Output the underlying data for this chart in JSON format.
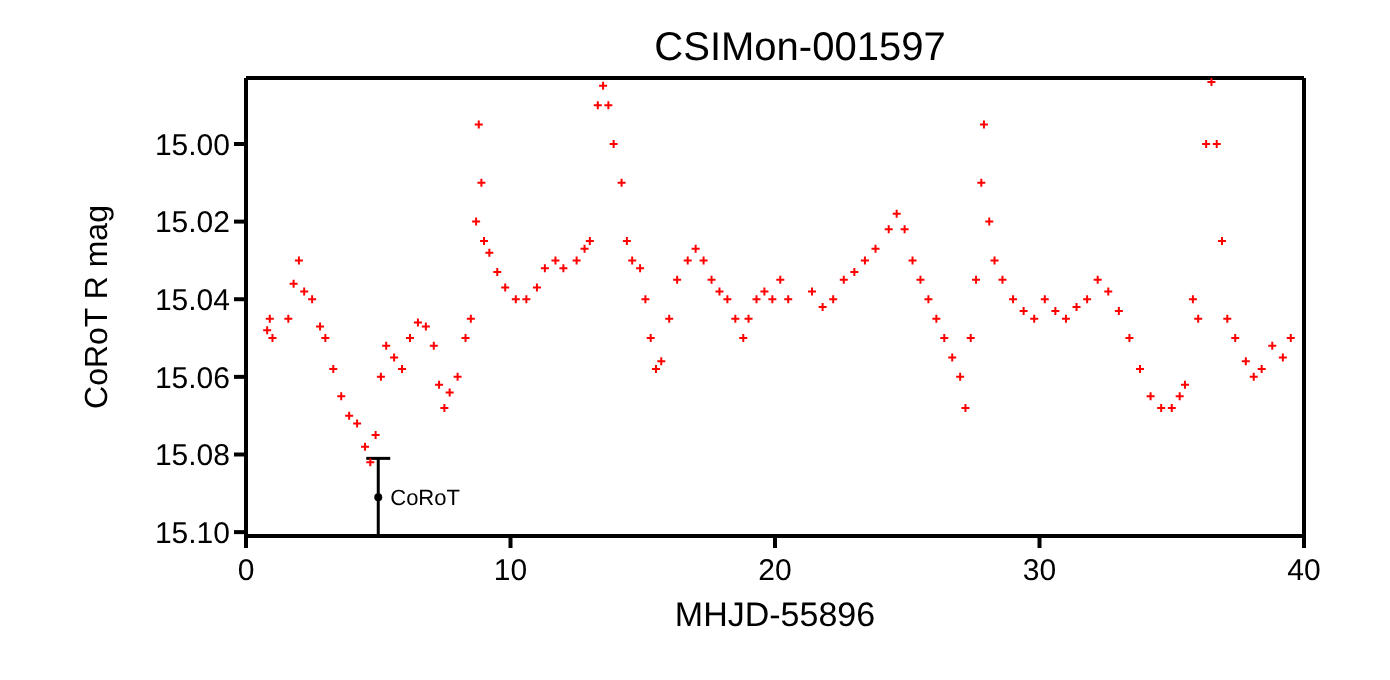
{
  "chart_data": {
    "type": "scatter",
    "title": "CSIMon-001597",
    "xlabel": "MHJD-55896",
    "ylabel": "CoRoT R mag",
    "xlim": [
      0,
      40
    ],
    "xticks": [
      0,
      10,
      20,
      30,
      40
    ],
    "ylim": [
      15.101,
      14.983
    ],
    "yticks": [
      {
        "value": 15,
        "label": "15.00"
      },
      {
        "value": 15.02,
        "label": "15.02"
      },
      {
        "value": 15.04,
        "label": "15.04"
      },
      {
        "value": 15.06,
        "label": "15.06"
      },
      {
        "value": 15.08,
        "label": "15.08"
      },
      {
        "value": 15.1,
        "label": "15.10"
      }
    ],
    "marker": "cross",
    "grid": false,
    "legend": false,
    "annotations": [
      {
        "text": "CoRoT",
        "x": 5,
        "y": 15.091
      }
    ],
    "series": [
      {
        "color": "#ff0000",
        "x": [
          0.8,
          0.9,
          1.0,
          1.6,
          1.8,
          2.0,
          2.2,
          2.5,
          2.8,
          3.0,
          3.3,
          3.6,
          3.9,
          4.2,
          4.5,
          4.7,
          4.9,
          5.1,
          5.3,
          5.6,
          5.9,
          6.2,
          6.5,
          6.8,
          7.1,
          7.3,
          7.5,
          7.7,
          8.0,
          8.3,
          8.5,
          8.7,
          8.8,
          8.9,
          9.0,
          9.2,
          9.5,
          9.8,
          10.2,
          10.6,
          11.0,
          11.3,
          11.7,
          12.0,
          12.5,
          12.8,
          13.0,
          13.3,
          13.5,
          13.7,
          13.9,
          14.2,
          14.4,
          14.6,
          14.9,
          15.1,
          15.3,
          15.5,
          15.7,
          16.0,
          16.3,
          16.7,
          17.0,
          17.3,
          17.6,
          17.9,
          18.2,
          18.5,
          18.8,
          19.0,
          19.3,
          19.6,
          19.9,
          20.2,
          20.5,
          21.4,
          21.8,
          22.2,
          22.6,
          23.0,
          23.4,
          23.8,
          24.3,
          24.6,
          24.9,
          25.2,
          25.5,
          25.8,
          26.1,
          26.4,
          26.7,
          27.0,
          27.2,
          27.4,
          27.6,
          27.8,
          27.9,
          28.1,
          28.3,
          28.6,
          29.0,
          29.4,
          29.8,
          30.2,
          30.6,
          31.0,
          31.4,
          31.8,
          32.2,
          32.6,
          33.0,
          33.4,
          33.8,
          34.2,
          34.6,
          35.0,
          35.3,
          35.5,
          35.8,
          36.0,
          36.3,
          36.5,
          36.7,
          36.9,
          37.1,
          37.4,
          37.8,
          38.1,
          38.4,
          38.8,
          39.2,
          39.5
        ],
        "values": [
          15.048,
          15.045,
          15.05,
          15.045,
          15.036,
          15.03,
          15.038,
          15.04,
          15.047,
          15.05,
          15.058,
          15.065,
          15.07,
          15.072,
          15.078,
          15.082,
          15.075,
          15.06,
          15.052,
          15.055,
          15.058,
          15.05,
          15.046,
          15.047,
          15.052,
          15.062,
          15.068,
          15.064,
          15.06,
          15.05,
          15.045,
          15.02,
          14.995,
          15.01,
          15.025,
          15.028,
          15.033,
          15.037,
          15.04,
          15.04,
          15.037,
          15.032,
          15.03,
          15.032,
          15.03,
          15.027,
          15.025,
          14.99,
          14.985,
          14.99,
          15.0,
          15.01,
          15.025,
          15.03,
          15.032,
          15.04,
          15.05,
          15.058,
          15.056,
          15.045,
          15.035,
          15.03,
          15.027,
          15.03,
          15.035,
          15.038,
          15.04,
          15.045,
          15.05,
          15.045,
          15.04,
          15.038,
          15.04,
          15.035,
          15.04,
          15.038,
          15.042,
          15.04,
          15.035,
          15.033,
          15.03,
          15.027,
          15.022,
          15.018,
          15.022,
          15.03,
          15.035,
          15.04,
          15.045,
          15.05,
          15.055,
          15.06,
          15.068,
          15.05,
          15.035,
          15.01,
          14.995,
          15.02,
          15.03,
          15.035,
          15.04,
          15.043,
          15.045,
          15.04,
          15.043,
          15.045,
          15.042,
          15.04,
          15.035,
          15.038,
          15.043,
          15.05,
          15.058,
          15.065,
          15.068,
          15.068,
          15.065,
          15.062,
          15.04,
          15.045,
          15.0,
          14.984,
          15.0,
          15.025,
          15.045,
          15.05,
          15.056,
          15.06,
          15.058,
          15.052,
          15.055,
          15.05
        ]
      },
      {
        "type": "scatter",
        "marker": "circle",
        "color": "#000000",
        "x": [
          5
        ],
        "values": [
          15.091
        ],
        "errors": [
          0.01
        ]
      }
    ]
  }
}
